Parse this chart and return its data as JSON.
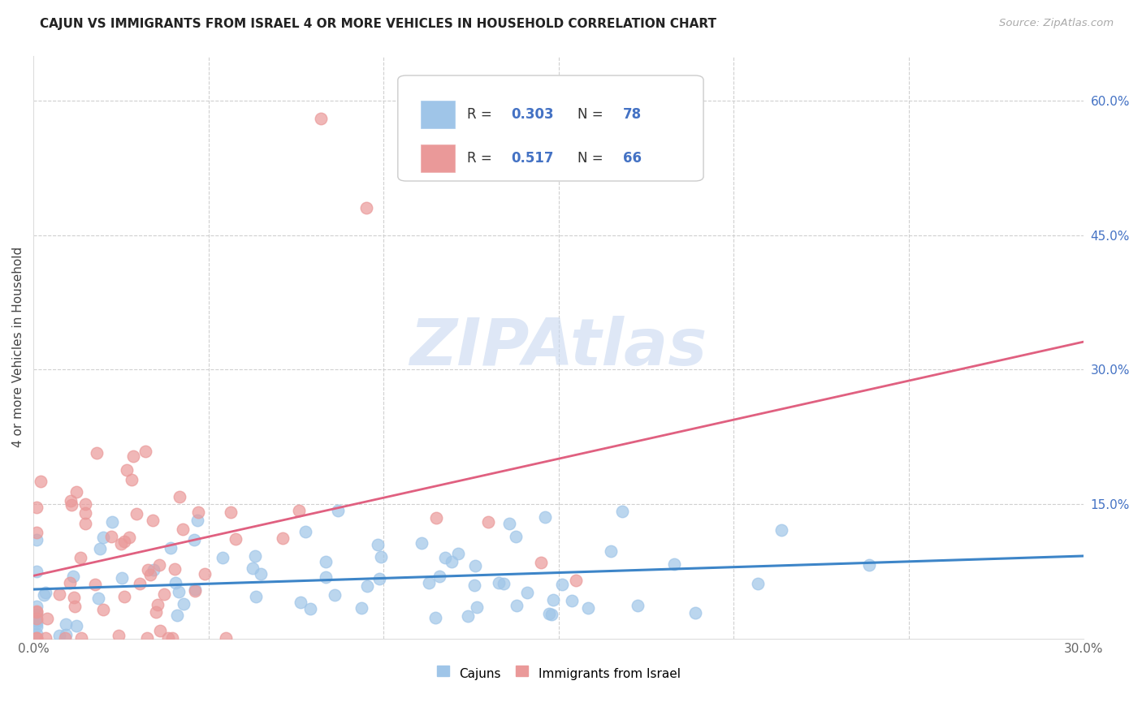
{
  "title": "CAJUN VS IMMIGRANTS FROM ISRAEL 4 OR MORE VEHICLES IN HOUSEHOLD CORRELATION CHART",
  "source": "Source: ZipAtlas.com",
  "ylabel": "4 or more Vehicles in Household",
  "xlim": [
    0.0,
    0.3
  ],
  "ylim": [
    0.0,
    0.65
  ],
  "xticks": [
    0.0,
    0.05,
    0.1,
    0.15,
    0.2,
    0.25,
    0.3
  ],
  "xticklabels": [
    "0.0%",
    "",
    "",
    "",
    "",
    "",
    "30.0%"
  ],
  "yticks_right": [
    0.0,
    0.15,
    0.3,
    0.45,
    0.6
  ],
  "yticklabels_right": [
    "",
    "15.0%",
    "30.0%",
    "45.0%",
    "60.0%"
  ],
  "blue_color": "#9fc5e8",
  "pink_color": "#ea9999",
  "blue_line_color": "#3d85c8",
  "pink_line_color": "#e06080",
  "legend_text_color": "#4472c4",
  "watermark_color": "#c8d8f0",
  "title_fontsize": 11,
  "right_tick_color": "#4472c4",
  "legend_R1": "R = ",
  "legend_V1": "0.303",
  "legend_N1_label": "N = ",
  "legend_N1_val": "78",
  "legend_R2": "R = ",
  "legend_V2": "0.517",
  "legend_N2_label": "N = ",
  "legend_N2_val": "66"
}
